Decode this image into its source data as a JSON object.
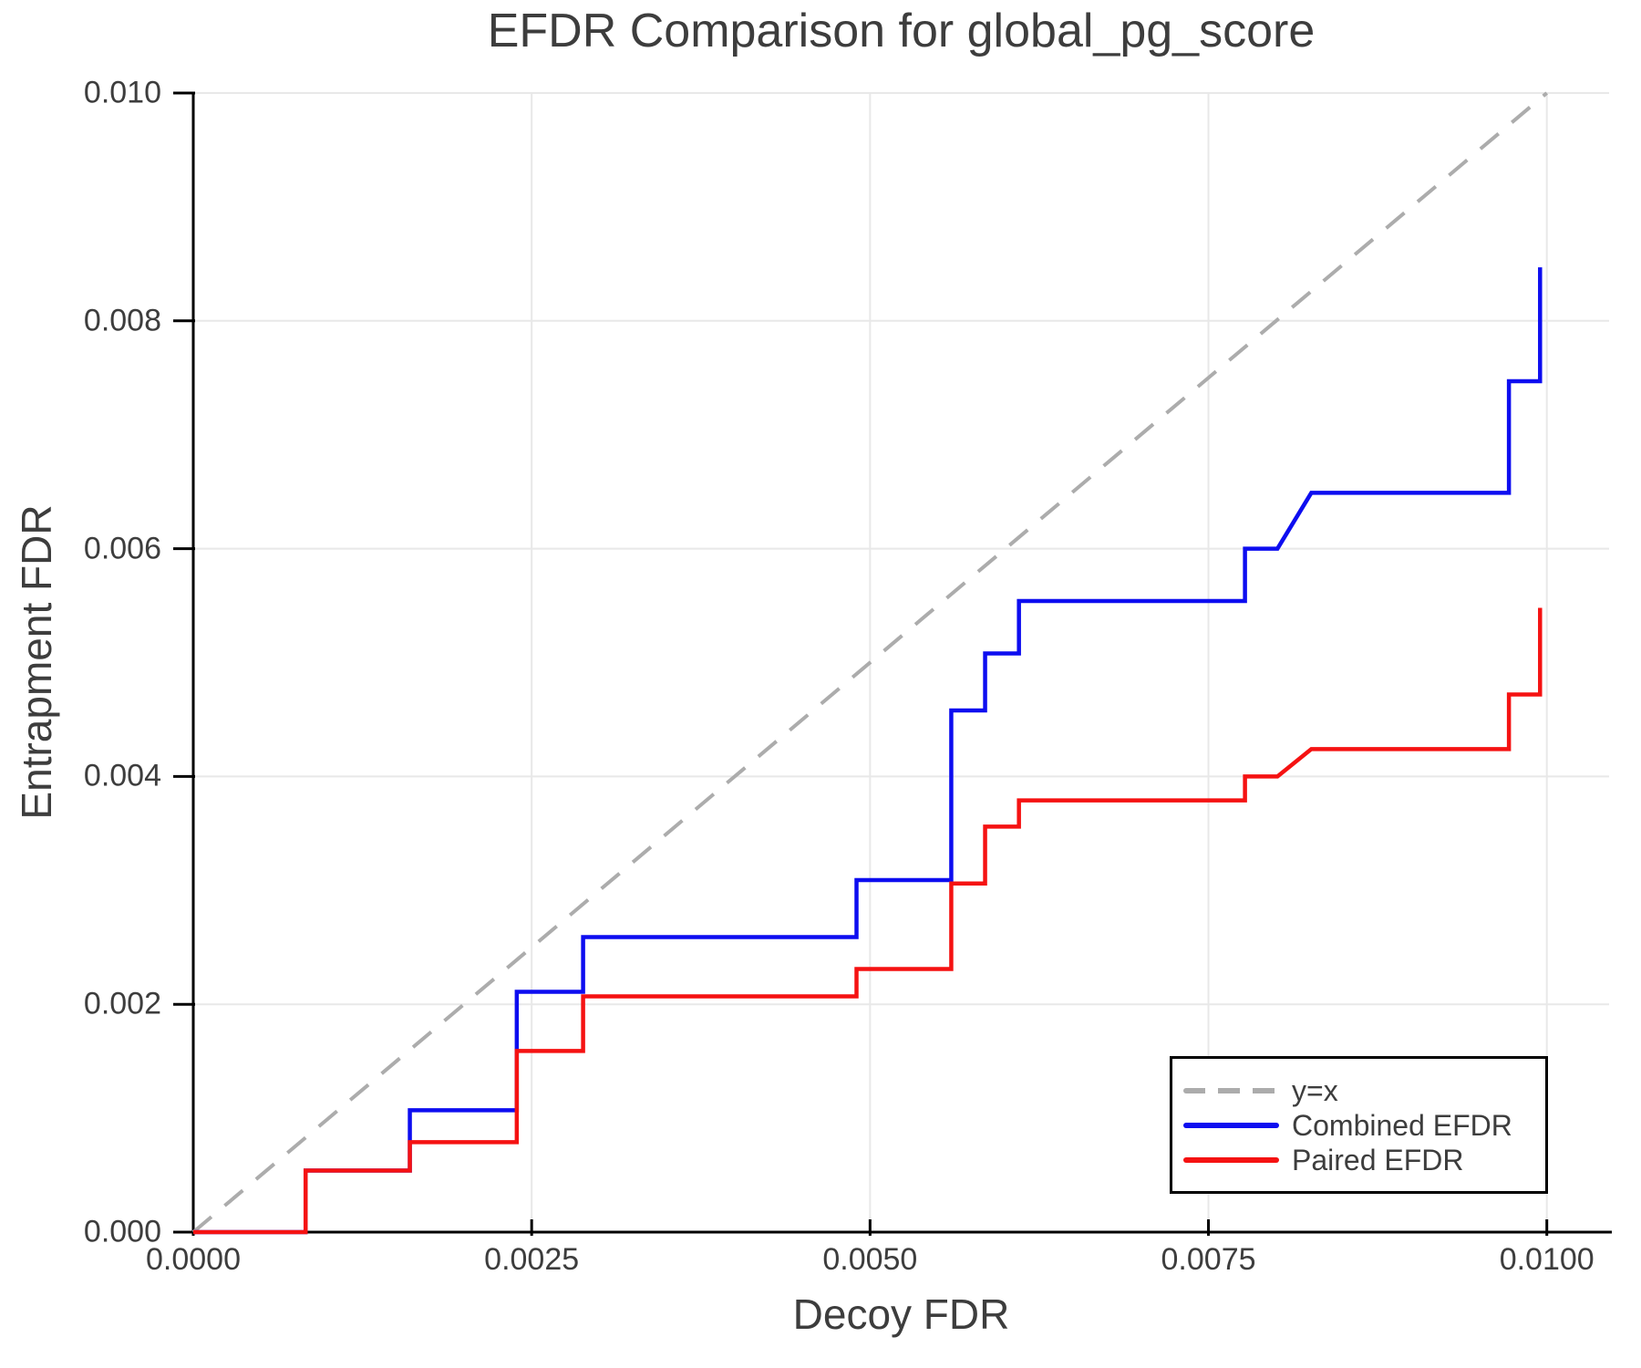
{
  "chart_data": {
    "type": "line",
    "title": "EFDR Comparison for global_pg_score",
    "xlabel": "Decoy FDR",
    "ylabel": "Entrapment FDR",
    "xlim": [
      0.0,
      0.01046
    ],
    "ylim": [
      0.0,
      0.01
    ],
    "grid": true,
    "x_ticks": {
      "values": [
        0.0,
        0.0025,
        0.005,
        0.0075,
        0.01
      ],
      "labels": [
        "0.0000",
        "0.0025",
        "0.0050",
        "0.0075",
        "0.0100"
      ]
    },
    "y_ticks": {
      "values": [
        0.0,
        0.002,
        0.004,
        0.006,
        0.008,
        0.01
      ],
      "labels": [
        "0.000",
        "0.002",
        "0.004",
        "0.006",
        "0.008",
        "0.010"
      ]
    },
    "styles": {
      "grid_color": "#e8e8e8",
      "spine_color": "#000000",
      "text_color": "#3d3d3d",
      "background": "#ffffff"
    },
    "legend": {
      "position": "lower-right",
      "entries": [
        {
          "label": "y=x",
          "color": "#acacac",
          "dashed": true
        },
        {
          "label": "Combined EFDR",
          "color": "#0d0df0",
          "dashed": false
        },
        {
          "label": "Paired EFDR",
          "color": "#f51212",
          "dashed": false
        }
      ]
    },
    "series": [
      {
        "name": "y=x",
        "color": "#acacac",
        "dashed": true,
        "width": 4,
        "points": [
          [
            0.0,
            0.0
          ],
          [
            0.01,
            0.01
          ]
        ]
      },
      {
        "name": "Combined EFDR",
        "color": "#0d0df0",
        "dashed": false,
        "width": 4.5,
        "points": [
          [
            0.0,
            0.0
          ],
          [
            0.00083,
            0.0
          ],
          [
            0.00083,
            0.00054
          ],
          [
            0.0016,
            0.00054
          ],
          [
            0.0016,
            0.00107
          ],
          [
            0.00239,
            0.00107
          ],
          [
            0.00239,
            0.00211
          ],
          [
            0.00288,
            0.00211
          ],
          [
            0.00288,
            0.00259
          ],
          [
            0.0049,
            0.00259
          ],
          [
            0.0049,
            0.00309
          ],
          [
            0.0056,
            0.00309
          ],
          [
            0.0056,
            0.00458
          ],
          [
            0.00585,
            0.00458
          ],
          [
            0.00585,
            0.00508
          ],
          [
            0.0061,
            0.00508
          ],
          [
            0.0061,
            0.00554
          ],
          [
            0.00777,
            0.00554
          ],
          [
            0.00777,
            0.006
          ],
          [
            0.00801,
            0.006
          ],
          [
            0.00826,
            0.00649
          ],
          [
            0.00972,
            0.00649
          ],
          [
            0.00972,
            0.00747
          ],
          [
            0.00995,
            0.00747
          ],
          [
            0.00995,
            0.00847
          ]
        ]
      },
      {
        "name": "Paired EFDR",
        "color": "#f51212",
        "dashed": false,
        "width": 4.5,
        "points": [
          [
            0.0,
            0.0
          ],
          [
            0.00083,
            0.0
          ],
          [
            0.00083,
            0.00054
          ],
          [
            0.0016,
            0.00054
          ],
          [
            0.0016,
            0.00079
          ],
          [
            0.00239,
            0.00079
          ],
          [
            0.00239,
            0.00159
          ],
          [
            0.00288,
            0.00159
          ],
          [
            0.00288,
            0.00207
          ],
          [
            0.0049,
            0.00207
          ],
          [
            0.0049,
            0.00231
          ],
          [
            0.0056,
            0.00231
          ],
          [
            0.0056,
            0.00306
          ],
          [
            0.00585,
            0.00306
          ],
          [
            0.00585,
            0.00356
          ],
          [
            0.0061,
            0.00356
          ],
          [
            0.0061,
            0.00379
          ],
          [
            0.00777,
            0.00379
          ],
          [
            0.00777,
            0.004
          ],
          [
            0.00801,
            0.004
          ],
          [
            0.00826,
            0.00424
          ],
          [
            0.00972,
            0.00424
          ],
          [
            0.00972,
            0.00472
          ],
          [
            0.00995,
            0.00472
          ],
          [
            0.00995,
            0.00548
          ]
        ]
      }
    ]
  }
}
